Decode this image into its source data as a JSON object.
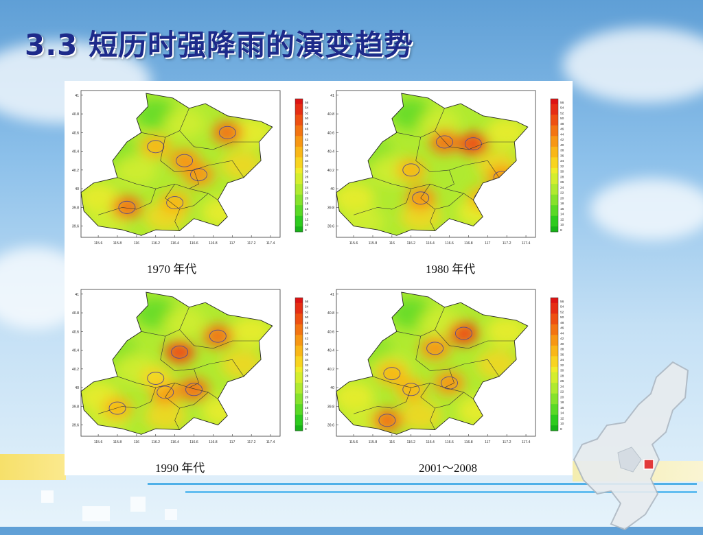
{
  "slide": {
    "title": "3.3 短历时强降雨的演变趋势"
  },
  "colors": {
    "title": "#1d2a8a",
    "contour": "#5a4a8a",
    "colorbar": [
      "#18b318",
      "#2ecb1e",
      "#5ad926",
      "#86e22c",
      "#b0ea30",
      "#d4ee2e",
      "#f0ec2a",
      "#f8d420",
      "#f9b718",
      "#f79714",
      "#f37412",
      "#ee5012",
      "#e62e14",
      "#dd1414"
    ]
  },
  "chart_data": [
    {
      "type": "heatmap",
      "caption": "1970 年代",
      "xticks": [
        "115.6",
        "115.8",
        "116",
        "116.2",
        "116.4",
        "116.6",
        "116.8",
        "117",
        "117.2",
        "117.4"
      ],
      "yticks": [
        "41",
        "40.8",
        "40.6",
        "40.4",
        "40.2",
        "40",
        "39.8",
        "39.6"
      ],
      "colorbar_ticks": [
        "56",
        "54",
        "52",
        "50",
        "48",
        "46",
        "44",
        "42",
        "40",
        "38",
        "36",
        "34",
        "32",
        "30",
        "28",
        "26",
        "24",
        "22",
        "20",
        "18",
        "16",
        "14",
        "12",
        "10",
        "8"
      ],
      "xlim": [
        115.42,
        117.5
      ],
      "ylim": [
        39.48,
        41.05
      ],
      "colorbar_range": [
        8,
        56
      ],
      "hotspots": [
        {
          "lon": 116.95,
          "lat": 40.6,
          "value": 44
        },
        {
          "lon": 116.5,
          "lat": 40.3,
          "value": 42
        },
        {
          "lon": 116.65,
          "lat": 40.15,
          "value": 40
        },
        {
          "lon": 115.9,
          "lat": 39.8,
          "value": 44
        },
        {
          "lon": 116.2,
          "lat": 40.45,
          "value": 38
        },
        {
          "lon": 116.4,
          "lat": 39.85,
          "value": 38
        }
      ]
    },
    {
      "type": "heatmap",
      "caption": "1980 年代",
      "xticks": [
        "115.6",
        "115.8",
        "116",
        "116.2",
        "116.4",
        "116.6",
        "116.8",
        "117",
        "117.2",
        "117.4"
      ],
      "yticks": [
        "41",
        "40.8",
        "40.6",
        "40.4",
        "40.2",
        "40",
        "39.8",
        "39.6"
      ],
      "colorbar_ticks": [
        "56",
        "54",
        "52",
        "50",
        "48",
        "46",
        "44",
        "42",
        "40",
        "38",
        "36",
        "34",
        "32",
        "30",
        "28",
        "26",
        "24",
        "22",
        "20",
        "18",
        "16",
        "14",
        "12",
        "10",
        "8"
      ],
      "xlim": [
        115.42,
        117.5
      ],
      "ylim": [
        39.48,
        41.05
      ],
      "colorbar_range": [
        8,
        56
      ],
      "hotspots": [
        {
          "lon": 116.85,
          "lat": 40.48,
          "value": 48
        },
        {
          "lon": 116.55,
          "lat": 40.5,
          "value": 44
        },
        {
          "lon": 117.15,
          "lat": 40.12,
          "value": 42
        },
        {
          "lon": 116.3,
          "lat": 39.9,
          "value": 40
        },
        {
          "lon": 116.2,
          "lat": 40.2,
          "value": 38
        },
        {
          "lon": 116.95,
          "lat": 39.9,
          "value": 36
        }
      ]
    },
    {
      "type": "heatmap",
      "caption": "1990 年代",
      "xticks": [
        "115.6",
        "115.8",
        "116",
        "116.2",
        "116.4",
        "116.6",
        "116.8",
        "117",
        "117.2",
        "117.4"
      ],
      "yticks": [
        "41",
        "40.8",
        "40.6",
        "40.4",
        "40.2",
        "40",
        "39.8",
        "39.6"
      ],
      "colorbar_ticks": [
        "56",
        "54",
        "52",
        "50",
        "48",
        "46",
        "44",
        "42",
        "40",
        "38",
        "36",
        "34",
        "32",
        "30",
        "28",
        "26",
        "24",
        "22",
        "20",
        "18",
        "16",
        "14",
        "12",
        "10",
        "8"
      ],
      "xlim": [
        115.42,
        117.5
      ],
      "ylim": [
        39.48,
        41.05
      ],
      "colorbar_range": [
        8,
        56
      ],
      "hotspots": [
        {
          "lon": 116.85,
          "lat": 40.55,
          "value": 46
        },
        {
          "lon": 116.45,
          "lat": 40.38,
          "value": 48
        },
        {
          "lon": 116.6,
          "lat": 39.98,
          "value": 44
        },
        {
          "lon": 116.3,
          "lat": 39.95,
          "value": 42
        },
        {
          "lon": 115.8,
          "lat": 39.78,
          "value": 36
        },
        {
          "lon": 116.2,
          "lat": 40.1,
          "value": 34
        }
      ]
    },
    {
      "type": "heatmap",
      "caption": "2001～2008",
      "xticks": [
        "115.6",
        "115.8",
        "116",
        "116.2",
        "116.4",
        "116.6",
        "116.8",
        "117",
        "117.2",
        "117.4"
      ],
      "yticks": [
        "41",
        "40.8",
        "40.6",
        "40.4",
        "40.2",
        "40",
        "39.8",
        "39.6"
      ],
      "colorbar_ticks": [
        "56",
        "54",
        "52",
        "50",
        "48",
        "46",
        "44",
        "42",
        "40",
        "38",
        "36",
        "34",
        "32",
        "30",
        "28",
        "26",
        "24",
        "22",
        "20",
        "18",
        "16",
        "14",
        "12",
        "10",
        "8"
      ],
      "xlim": [
        115.42,
        117.5
      ],
      "ylim": [
        39.48,
        41.05
      ],
      "colorbar_range": [
        8,
        56
      ],
      "hotspots": [
        {
          "lon": 116.75,
          "lat": 40.58,
          "value": 48
        },
        {
          "lon": 116.45,
          "lat": 40.42,
          "value": 40
        },
        {
          "lon": 116.6,
          "lat": 40.05,
          "value": 40
        },
        {
          "lon": 115.95,
          "lat": 39.65,
          "value": 44
        },
        {
          "lon": 116.2,
          "lat": 39.98,
          "value": 38
        },
        {
          "lon": 116.0,
          "lat": 40.15,
          "value": 36
        }
      ]
    }
  ]
}
